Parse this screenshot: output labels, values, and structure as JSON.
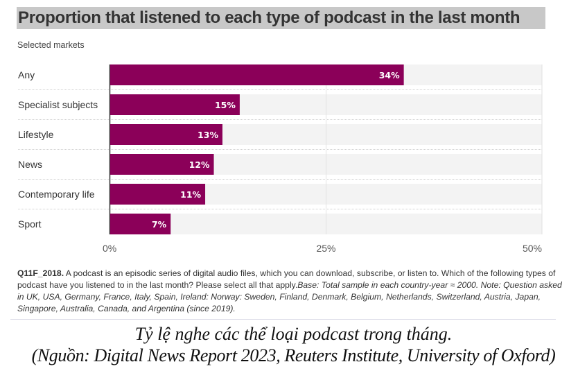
{
  "title": "Proportion that listened to each type of podcast in the last month",
  "subtitle": "Selected markets",
  "chart_data": {
    "type": "bar",
    "orientation": "horizontal",
    "title": "Proportion that listened to each type of podcast in the last month",
    "subtitle": "Selected markets",
    "categories": [
      "Any",
      "Specialist subjects",
      "Lifestyle",
      "News",
      "Contemporary life",
      "Sport"
    ],
    "values": [
      34,
      15,
      13,
      12,
      11,
      7
    ],
    "value_labels": [
      "34%",
      "15%",
      "13%",
      "12%",
      "11%",
      "7%"
    ],
    "xlabel": "",
    "ylabel": "",
    "xlim": [
      0,
      50
    ],
    "x_ticks": [
      0,
      25,
      50
    ],
    "x_tick_labels": [
      "0%",
      "25%",
      "50%"
    ],
    "grid": true,
    "legend": "none",
    "bar_color": "#8b0059",
    "track_color": "#f3f3f3"
  },
  "note": {
    "code": "Q11F_2018.",
    "question": " A podcast is an episodic series of digital audio files, which you can download, subscribe, or listen to. Which of the following types of podcast have you listened to in the last month? Please select all that apply.",
    "base": "Base: Total sample in each country-year ≈ 2000. Note: Question asked in UK, USA, Germany, France, Italy, Spain, Ireland: Norway: Sweden, Finland, Denmark, Belgium, Netherlands, Switzerland, Austria, Japan, Singapore, Australia, Canada, and Argentina (since 2019)."
  },
  "caption": {
    "line1": "Tỷ lệ nghe các thể loại podcast trong tháng.",
    "line2": "(Nguồn: Digital News Report 2023, Reuters Institute, University of Oxford)"
  }
}
